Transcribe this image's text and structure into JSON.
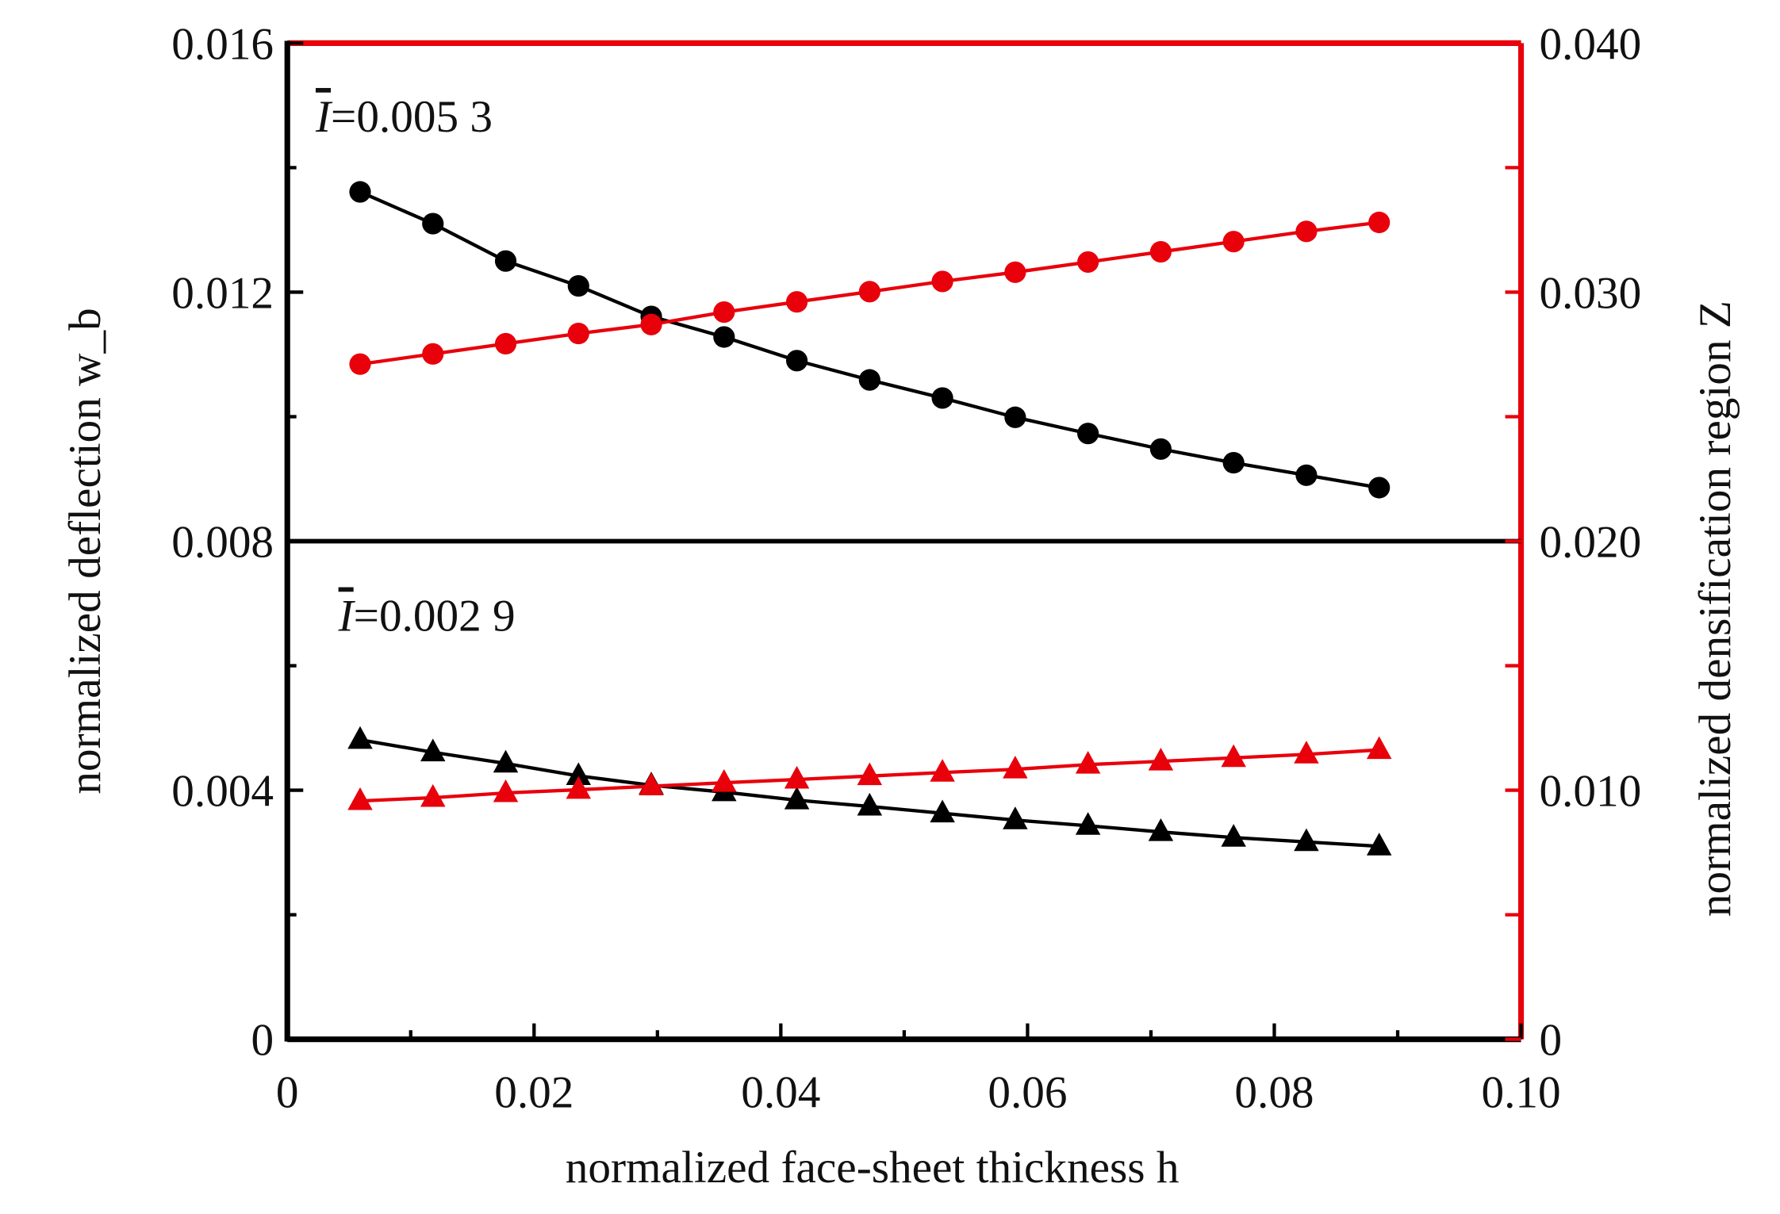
{
  "chart_data": {
    "type": "line",
    "xlabel": "normalized face-sheet thickness h",
    "ylabel_left": "normalized deflection w_b",
    "ylabel_right": "normalized densification region Z",
    "xlim": [
      0,
      0.1
    ],
    "ylim_left": [
      0,
      0.016
    ],
    "ylim_right": [
      0,
      0.04
    ],
    "x_ticks": [
      "0",
      "0.02",
      "0.04",
      "0.06",
      "0.08",
      "0.10"
    ],
    "y_left_ticks": [
      "0",
      "0.004",
      "0.008",
      "0.012",
      "0.016"
    ],
    "y_right_ticks": [
      "0",
      "0.010",
      "0.020",
      "0.030",
      "0.040"
    ],
    "annotations": [
      {
        "symbol": "I",
        "text": "=0.005 3"
      },
      {
        "symbol": "I",
        "text": "=0.002 9"
      }
    ],
    "colors": {
      "black": "#000000",
      "red": "#e8000b"
    },
    "x": [
      0.0059,
      0.0118,
      0.0177,
      0.0236,
      0.0295,
      0.0354,
      0.0413,
      0.0472,
      0.0531,
      0.059,
      0.0649,
      0.0708,
      0.0767,
      0.0826,
      0.0885
    ],
    "series": [
      {
        "name": "deflection, I=0.0053",
        "axis": "left",
        "marker": "circle",
        "color": "#000000",
        "values": [
          0.01361,
          0.0131,
          0.0125,
          0.0121,
          0.01161,
          0.01128,
          0.0109,
          0.01059,
          0.0103,
          0.00999,
          0.00973,
          0.00948,
          0.00926,
          0.00906,
          0.00886
        ]
      },
      {
        "name": "densification, I=0.0053",
        "axis": "right",
        "marker": "circle",
        "color": "#e8000b",
        "values": [
          0.02711,
          0.02752,
          0.02793,
          0.02834,
          0.0287,
          0.0292,
          0.02961,
          0.03002,
          0.03043,
          0.0308,
          0.03121,
          0.03162,
          0.03203,
          0.03244,
          0.0328
        ]
      },
      {
        "name": "deflection, I=0.0029",
        "axis": "left",
        "marker": "triangle",
        "color": "#000000",
        "values": [
          0.00481,
          0.00461,
          0.00443,
          0.00423,
          0.00408,
          0.00397,
          0.00384,
          0.00374,
          0.00363,
          0.00352,
          0.00343,
          0.00333,
          0.00324,
          0.00317,
          0.0031
        ]
      },
      {
        "name": "densification, I=0.0029",
        "axis": "right",
        "marker": "triangle",
        "color": "#e8000b",
        "values": [
          0.00957,
          0.0097,
          0.00989,
          0.01002,
          0.01016,
          0.0103,
          0.01043,
          0.01057,
          0.01071,
          0.01084,
          0.01103,
          0.01116,
          0.0113,
          0.01144,
          0.01162
        ]
      }
    ]
  }
}
